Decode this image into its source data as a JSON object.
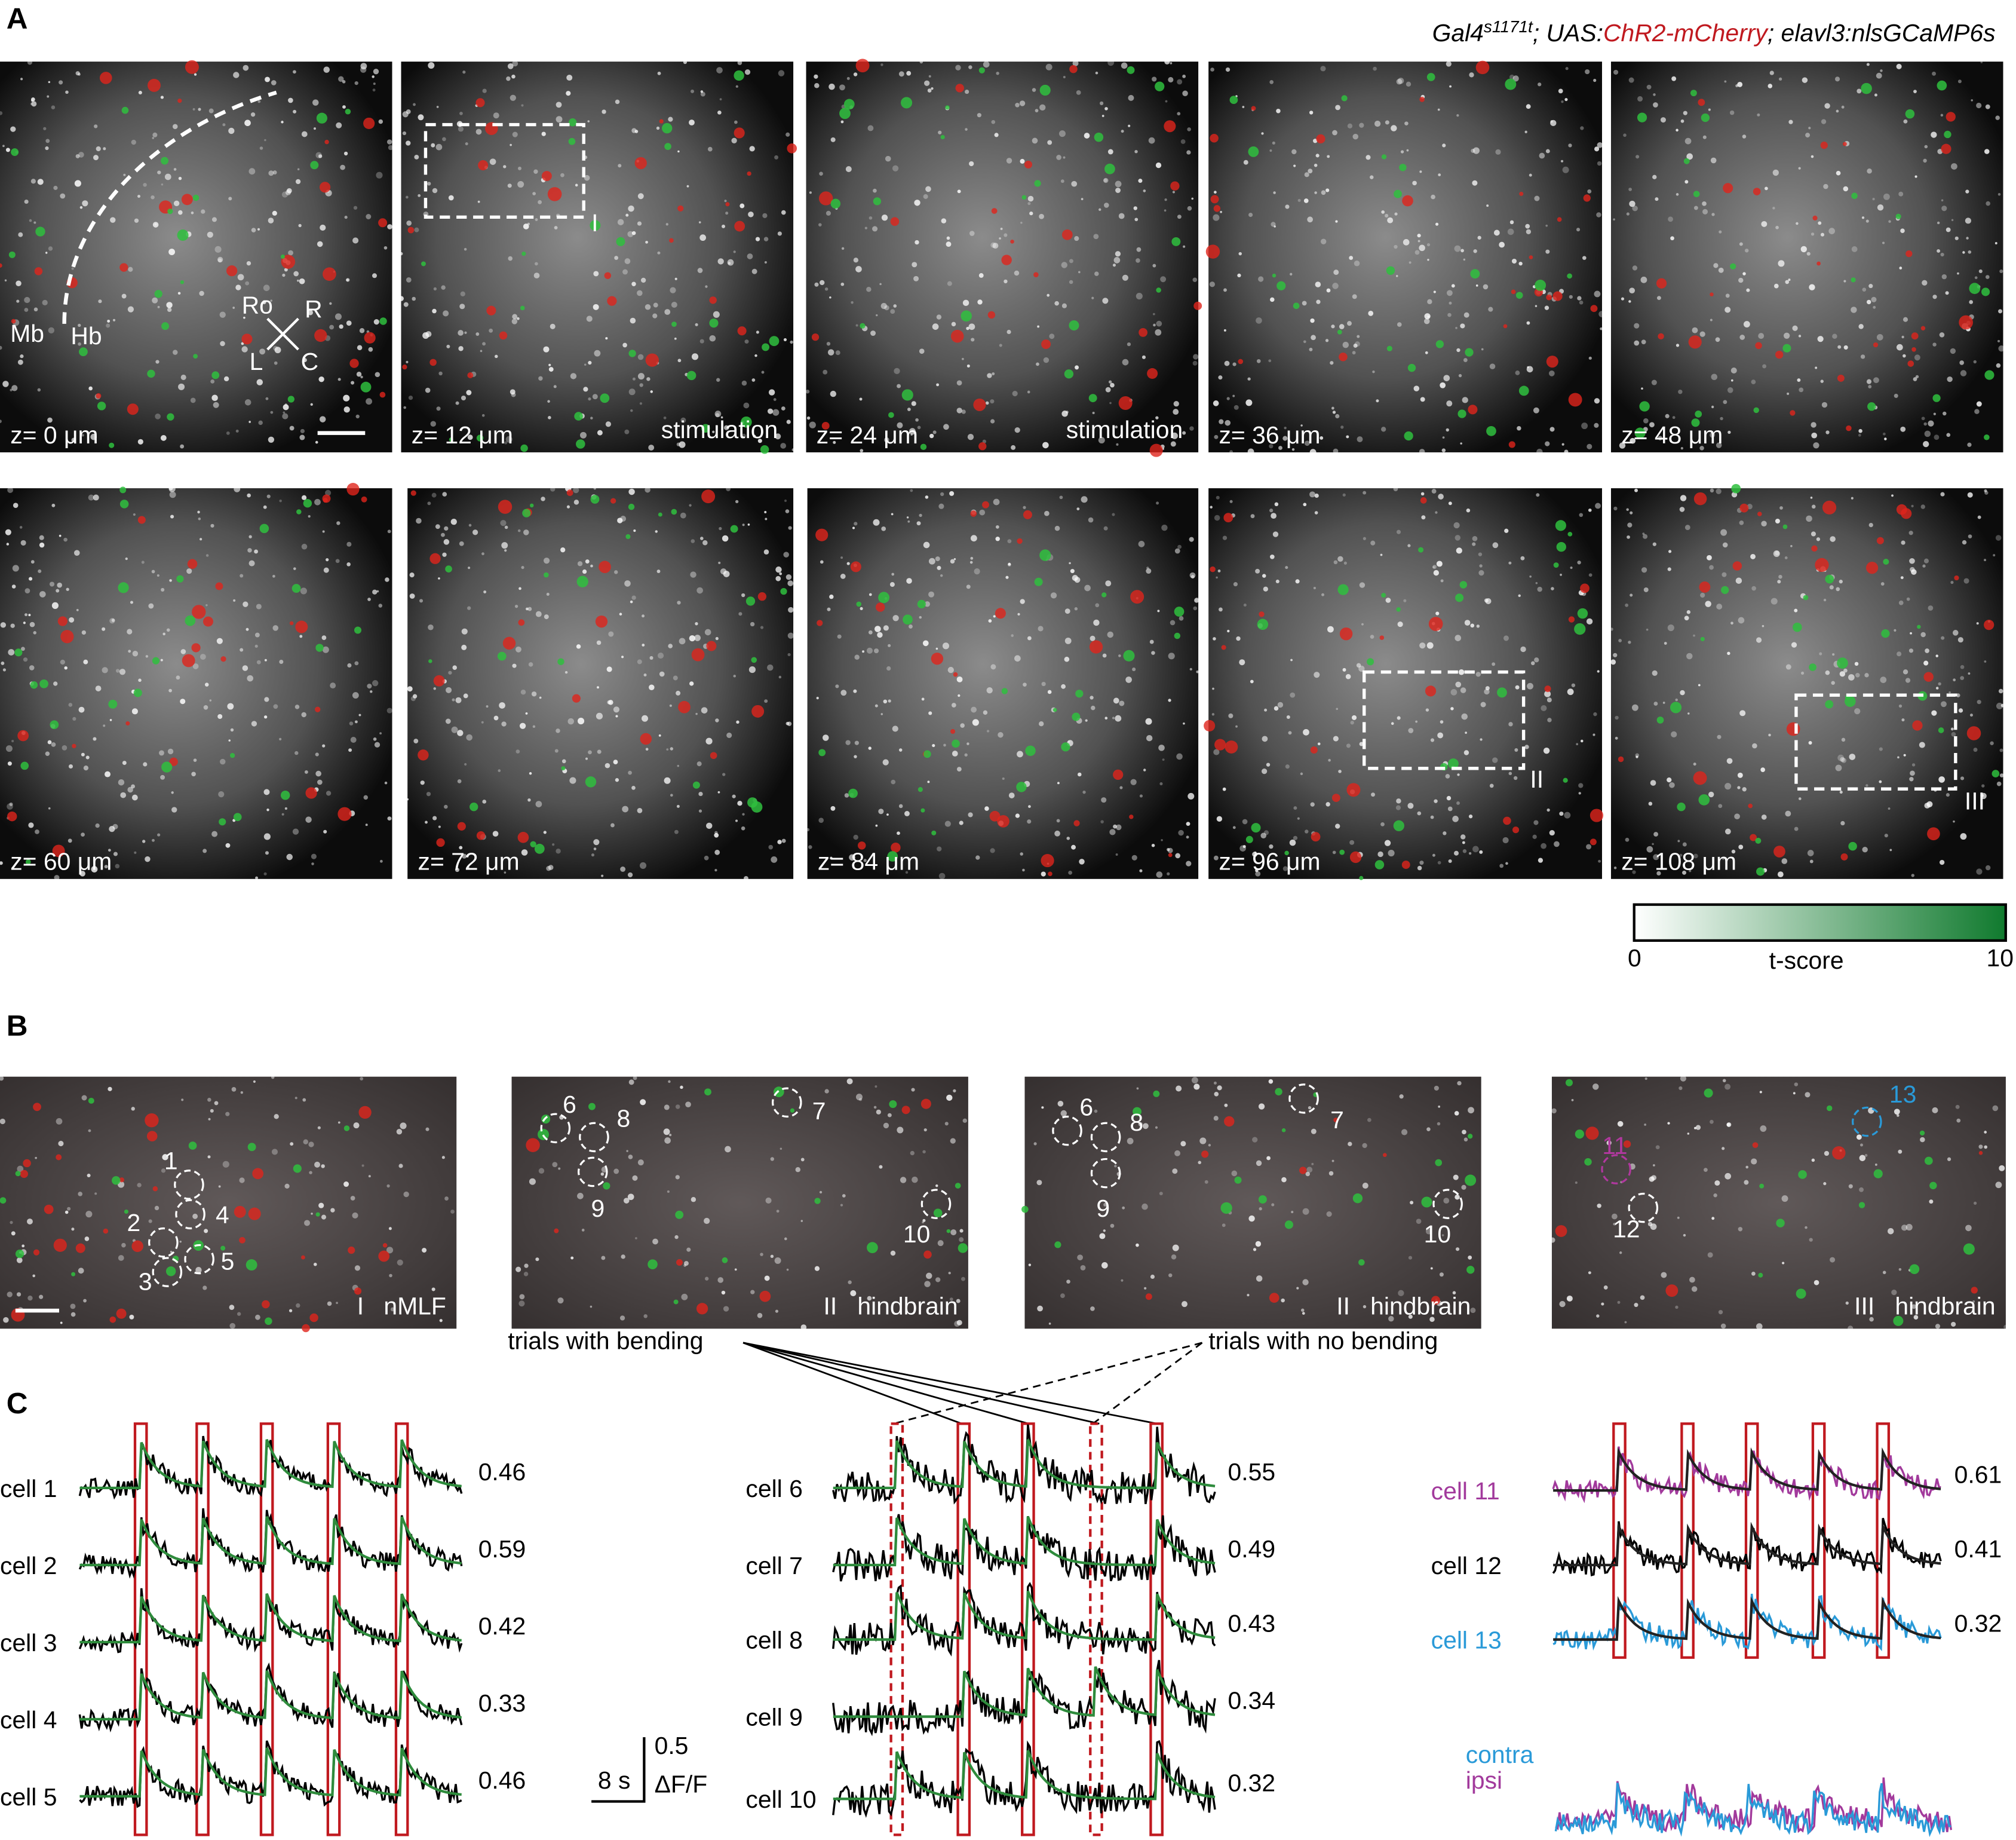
{
  "panel_labels": [
    "A",
    "B",
    "C"
  ],
  "genotype": {
    "gal4": "Gal4",
    "superscript": "s1171t",
    "uas": "; UAS:",
    "chr2": "ChR2-mCherry",
    "rest": "; elavl3:nlsGCaMP6s"
  },
  "panel_a": {
    "slices": [
      {
        "z": "z= 0 μm"
      },
      {
        "z": "z= 12 μm",
        "note": "stimulation"
      },
      {
        "z": "z= 24 μm",
        "note": "stimulation"
      },
      {
        "z": "z= 36 μm"
      },
      {
        "z": "z= 48 μm"
      },
      {
        "z": "z= 60 μm"
      },
      {
        "z": "z= 72 μm"
      },
      {
        "z": "z= 84 μm"
      },
      {
        "z": "z= 96 μm"
      },
      {
        "z": "z= 108 μm"
      }
    ],
    "anatomy": [
      "Mb",
      "Hb"
    ],
    "orientation": [
      "Ro",
      "R",
      "L",
      "C"
    ],
    "rois": [
      "I",
      "II",
      "III"
    ],
    "colorbar": {
      "min": "0",
      "label": "t-score",
      "max": "10"
    }
  },
  "panel_b": {
    "images": [
      {
        "roman": "I",
        "region": "nMLF",
        "cells": [
          "1",
          "2",
          "3",
          "4",
          "5"
        ]
      },
      {
        "roman": "II",
        "region": "hindbrain",
        "cells": [
          "6",
          "7",
          "8",
          "9",
          "10"
        ]
      },
      {
        "roman": "II",
        "region": "hindbrain",
        "cells": [
          "6",
          "7",
          "8",
          "9",
          "10"
        ]
      },
      {
        "roman": "III",
        "region": "hindbrain",
        "cells": [
          "11",
          "12",
          "13"
        ]
      }
    ],
    "trials": [
      "trials with bending",
      "trials with no bending"
    ]
  },
  "panel_c": {
    "groups": [
      {
        "cells": [
          {
            "name": "cell 1",
            "r": "0.46"
          },
          {
            "name": "cell 2",
            "r": "0.59"
          },
          {
            "name": "cell 3",
            "r": "0.42"
          },
          {
            "name": "cell 4",
            "r": "0.33"
          },
          {
            "name": "cell 5",
            "r": "0.46"
          }
        ]
      },
      {
        "cells": [
          {
            "name": "cell 6",
            "r": "0.55"
          },
          {
            "name": "cell 7",
            "r": "0.49"
          },
          {
            "name": "cell 8",
            "r": "0.43"
          },
          {
            "name": "cell 9",
            "r": "0.34"
          },
          {
            "name": "cell 10",
            "r": "0.32"
          }
        ]
      },
      {
        "cells": [
          {
            "name": "cell 11",
            "r": "0.61"
          },
          {
            "name": "cell 12",
            "r": "0.41"
          },
          {
            "name": "cell 13",
            "r": "0.32"
          }
        ]
      }
    ],
    "scale": {
      "time": "8 s",
      "amp": "0.5",
      "unit": "ΔF/F"
    },
    "legend": [
      "contra",
      "ipsi"
    ]
  }
}
